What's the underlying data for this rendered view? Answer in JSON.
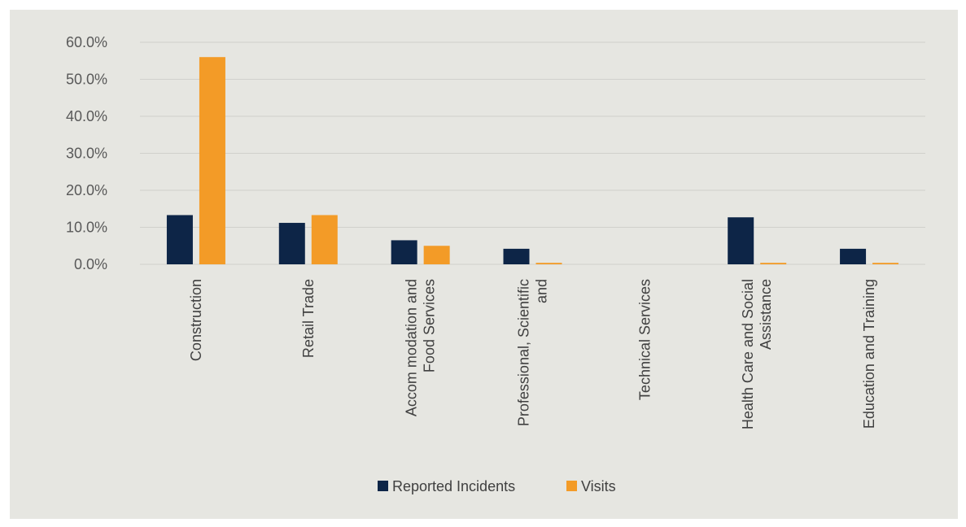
{
  "chart_data": {
    "type": "bar",
    "categories": [
      [
        "Construction"
      ],
      [
        "Retail Trade"
      ],
      [
        "Accom modation and",
        "Food Services"
      ],
      [
        "Professional, Scientific",
        "and"
      ],
      [
        "Technical Services"
      ],
      [
        "Health Care and Social",
        "Assistance"
      ],
      [
        "Education and Training"
      ]
    ],
    "series": [
      {
        "name": "Reported Incidents",
        "color": "#0d2547",
        "values": [
          13.3,
          11.2,
          6.5,
          4.2,
          0,
          12.7,
          4.2
        ]
      },
      {
        "name": "Visits",
        "color": "#f39b27",
        "values": [
          56.0,
          13.3,
          5.0,
          0.4,
          0,
          0.4,
          0.4
        ]
      }
    ],
    "yticks": [
      "0.0%",
      "10.0%",
      "20.0%",
      "30.0%",
      "40.0%",
      "50.0%",
      "60.0%"
    ],
    "ylim": [
      0,
      60
    ],
    "grid": true,
    "legend_position": "bottom"
  }
}
